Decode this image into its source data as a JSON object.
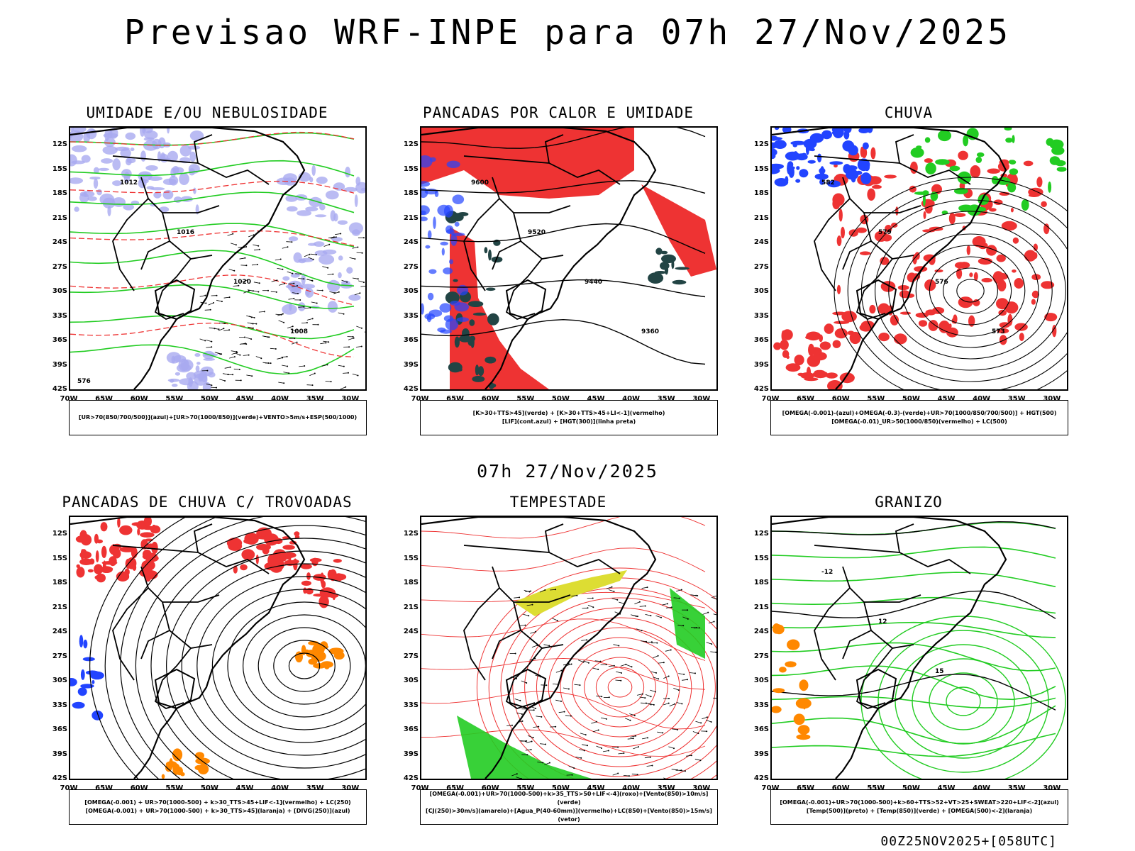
{
  "page": {
    "main_title": "Previsao WRF-INPE  para 07h 27/Nov/2025",
    "mid_title": "07h 27/Nov/2025",
    "footer": "00Z25NOV2025+[058UTC]"
  },
  "axes": {
    "lat_labels": [
      "12S",
      "15S",
      "18S",
      "21S",
      "24S",
      "27S",
      "30S",
      "33S",
      "36S",
      "39S",
      "42S"
    ],
    "lon_labels": [
      "70W",
      "65W",
      "60W",
      "55W",
      "50W",
      "45W",
      "40W",
      "35W",
      "30W"
    ]
  },
  "panels": [
    {
      "title": "UMIDADE E/OU NEBULOSIDADE",
      "legend": [
        "[UR>70(850/700/500)](azul)+[UR>70(1000/850)](verde)+VENTO>5m/s+ESP(500/1000)"
      ],
      "contour_labels": [
        "1012",
        "1016",
        "1020",
        "1008",
        "576"
      ]
    },
    {
      "title": "PANCADAS POR CALOR E UMIDADE",
      "legend": [
        "[K>30+TTS>45](verde) + [K>30+TTS>45+LI<-1](vermelho)",
        "[LIF](cont.azul) + [HGT(300)](linha preta)"
      ],
      "contour_labels": [
        "9600",
        "9520",
        "9440",
        "9360"
      ]
    },
    {
      "title": "CHUVA",
      "legend": [
        "[OMEGA(-0.001)-(azul)+OMEGA(-0.3)-(verde)+UR>70(1000/850/700/500)] + HGT(500)",
        "[OMEGA(-0.01)_UR>50(1000/850)(vermelho) + LC(500)"
      ],
      "contour_labels": [
        "582",
        "579",
        "576",
        "573"
      ]
    },
    {
      "title": "PANCADAS DE CHUVA C/ TROVOADAS",
      "legend": [
        "[OMEGA(-0.001) + UR>70(1000-500) + k>30_TTS>45+LIF<-1](vermelho) + LC(250)",
        "[OMEGA(-0.001) + UR>70(1000-500) + k>30_TTS>45](laranja) + [DIVG(250)](azul)"
      ],
      "contour_labels": []
    },
    {
      "title": "TEMPESTADE",
      "legend": [
        "[OMEGA(-0.001)+UR>70(1000-500)+k>35_TTS>50+LIF<-4](roxo)+[Vento(850)>10m/s](verde)",
        "[CJ(250)>30m/s](amarelo)+[Agua_P(40-60mm)](vermelho)+LC(850)+[Vento(850)>15m/s](vetor)"
      ],
      "contour_labels": []
    },
    {
      "title": "GRANIZO",
      "legend": [
        "[OMEGA(-0.001)+UR>70(1000-500)+k>60+TTS>52+VT>25+SWEAT>220+LIF<-2](azul)",
        "[Temp(500)](preto) + [Temp(850)](verde) + [OMEGA(500)<-2](laranja)"
      ],
      "contour_labels": [
        "-12",
        "12",
        "15"
      ]
    }
  ],
  "colors": {
    "blue_fill": "#a9aaf0",
    "green": "#22cc22",
    "red": "#ee3333",
    "dark_teal": "#224444",
    "yellow": "#dddd33",
    "orange": "#ff8800",
    "blue": "#2244ff"
  }
}
